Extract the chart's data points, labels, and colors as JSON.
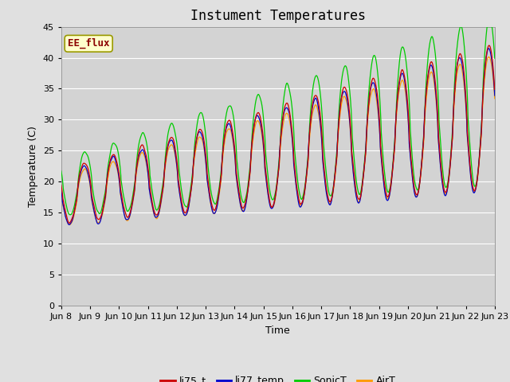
{
  "title": "Instument Temperatures",
  "xlabel": "Time",
  "ylabel": "Temperature (C)",
  "ylim": [
    0,
    45
  ],
  "yticks": [
    0,
    5,
    10,
    15,
    20,
    25,
    30,
    35,
    40,
    45
  ],
  "series_colors": {
    "li75_t": "#cc0000",
    "li77_temp": "#0000cc",
    "SonicT": "#00cc00",
    "AirT": "#ff9900"
  },
  "annotation_text": "EE_flux",
  "annotation_color": "#8b0000",
  "annotation_bg": "#ffffcc",
  "annotation_edge": "#999900",
  "background_color": "#e0e0e0",
  "plot_bg_color": "#d3d3d3",
  "grid_color": "#ffffff",
  "tick_label_fontsize": 8,
  "title_fontsize": 12,
  "axis_label_fontsize": 9,
  "n_days": 15,
  "xtick_labels": [
    "Jun 8",
    "Jun 9",
    "Jun 10",
    "Jun 11",
    "Jun 12",
    "Jun 13",
    "Jun 14",
    "Jun 15",
    "Jun 16",
    "Jun 17",
    "Jun 18",
    "Jun 19",
    "Jun 20",
    "Jun 21",
    "Jun 22",
    "Jun 23"
  ]
}
